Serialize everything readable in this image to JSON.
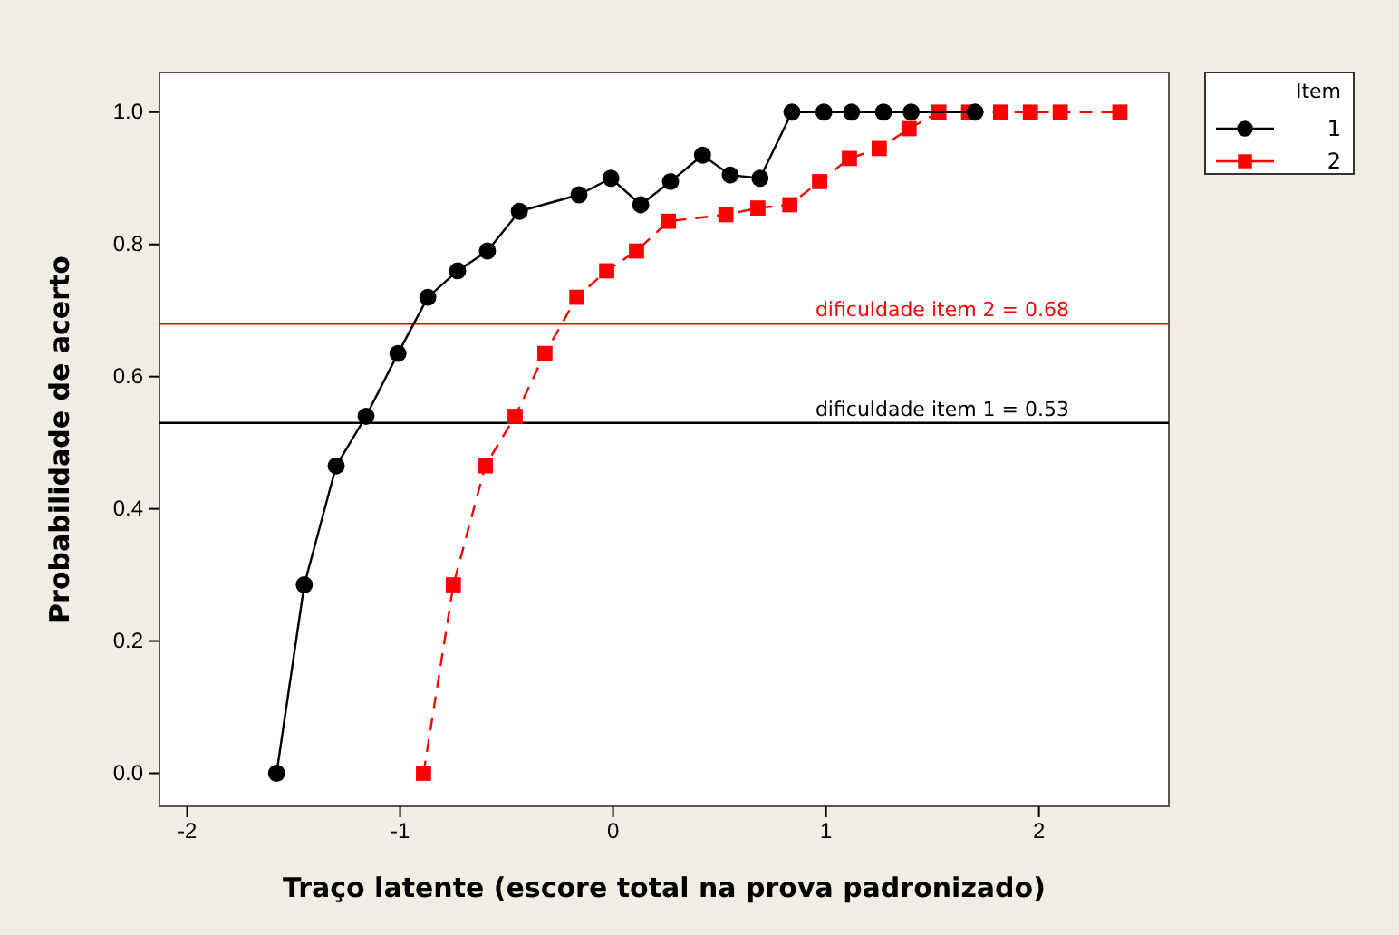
{
  "chart_data": {
    "type": "line",
    "xlabel": "Traço latente (escore total na prova padronizado)",
    "ylabel": "Probabilidade de acerto",
    "legend_title": "Item",
    "legend": "top right",
    "xlim": [
      -2.13,
      2.61
    ],
    "ylim": [
      -0.05,
      1.06
    ],
    "xticks": [
      -2,
      -1,
      0,
      1,
      2
    ],
    "yticks": [
      {
        "value": 0,
        "label": "0.0"
      },
      {
        "value": 0.2,
        "label": "0.2"
      },
      {
        "value": 0.4,
        "label": "0.4"
      },
      {
        "value": 0.6,
        "label": "0.6"
      },
      {
        "value": 0.8,
        "label": "0.8"
      },
      {
        "value": 1,
        "label": "1.0"
      }
    ],
    "series": [
      {
        "name": "1",
        "color": "#000000",
        "marker": "circle",
        "line_style": "solid",
        "x": [
          -1.58,
          -1.45,
          -1.3,
          -1.16,
          -1.01,
          -0.87,
          -0.73,
          -0.59,
          -0.44,
          -0.16,
          -0.01,
          0.13,
          0.27,
          0.42,
          0.55,
          0.69,
          0.84,
          0.99,
          1.12,
          1.27,
          1.4,
          1.7
        ],
        "values": [
          0,
          0.285,
          0.465,
          0.54,
          0.635,
          0.72,
          0.76,
          0.79,
          0.85,
          0.875,
          0.9,
          0.86,
          0.895,
          0.935,
          0.905,
          0.9,
          1,
          1,
          1,
          1,
          1,
          1
        ]
      },
      {
        "name": "2",
        "color": "#ff0000",
        "marker": "square",
        "line_style": "dashed",
        "x": [
          -0.89,
          -0.75,
          -0.6,
          -0.46,
          -0.32,
          -0.17,
          -0.03,
          0.11,
          0.26,
          0.53,
          0.68,
          0.83,
          0.97,
          1.11,
          1.25,
          1.39,
          1.53,
          1.67,
          1.82,
          1.96,
          2.1,
          2.38
        ],
        "values": [
          0,
          0.285,
          0.465,
          0.54,
          0.635,
          0.72,
          0.76,
          0.79,
          0.835,
          0.845,
          0.855,
          0.86,
          0.895,
          0.93,
          0.945,
          0.975,
          1,
          1,
          1,
          1,
          1,
          1
        ]
      }
    ],
    "ref_lines": [
      {
        "axis": "y",
        "value": 0.68,
        "label": "dificuldade item 2 = 0.68",
        "color": "#ff0000"
      },
      {
        "axis": "y",
        "value": 0.53,
        "label": "dificuldade item 1 = 0.53",
        "color": "#000000"
      }
    ]
  }
}
